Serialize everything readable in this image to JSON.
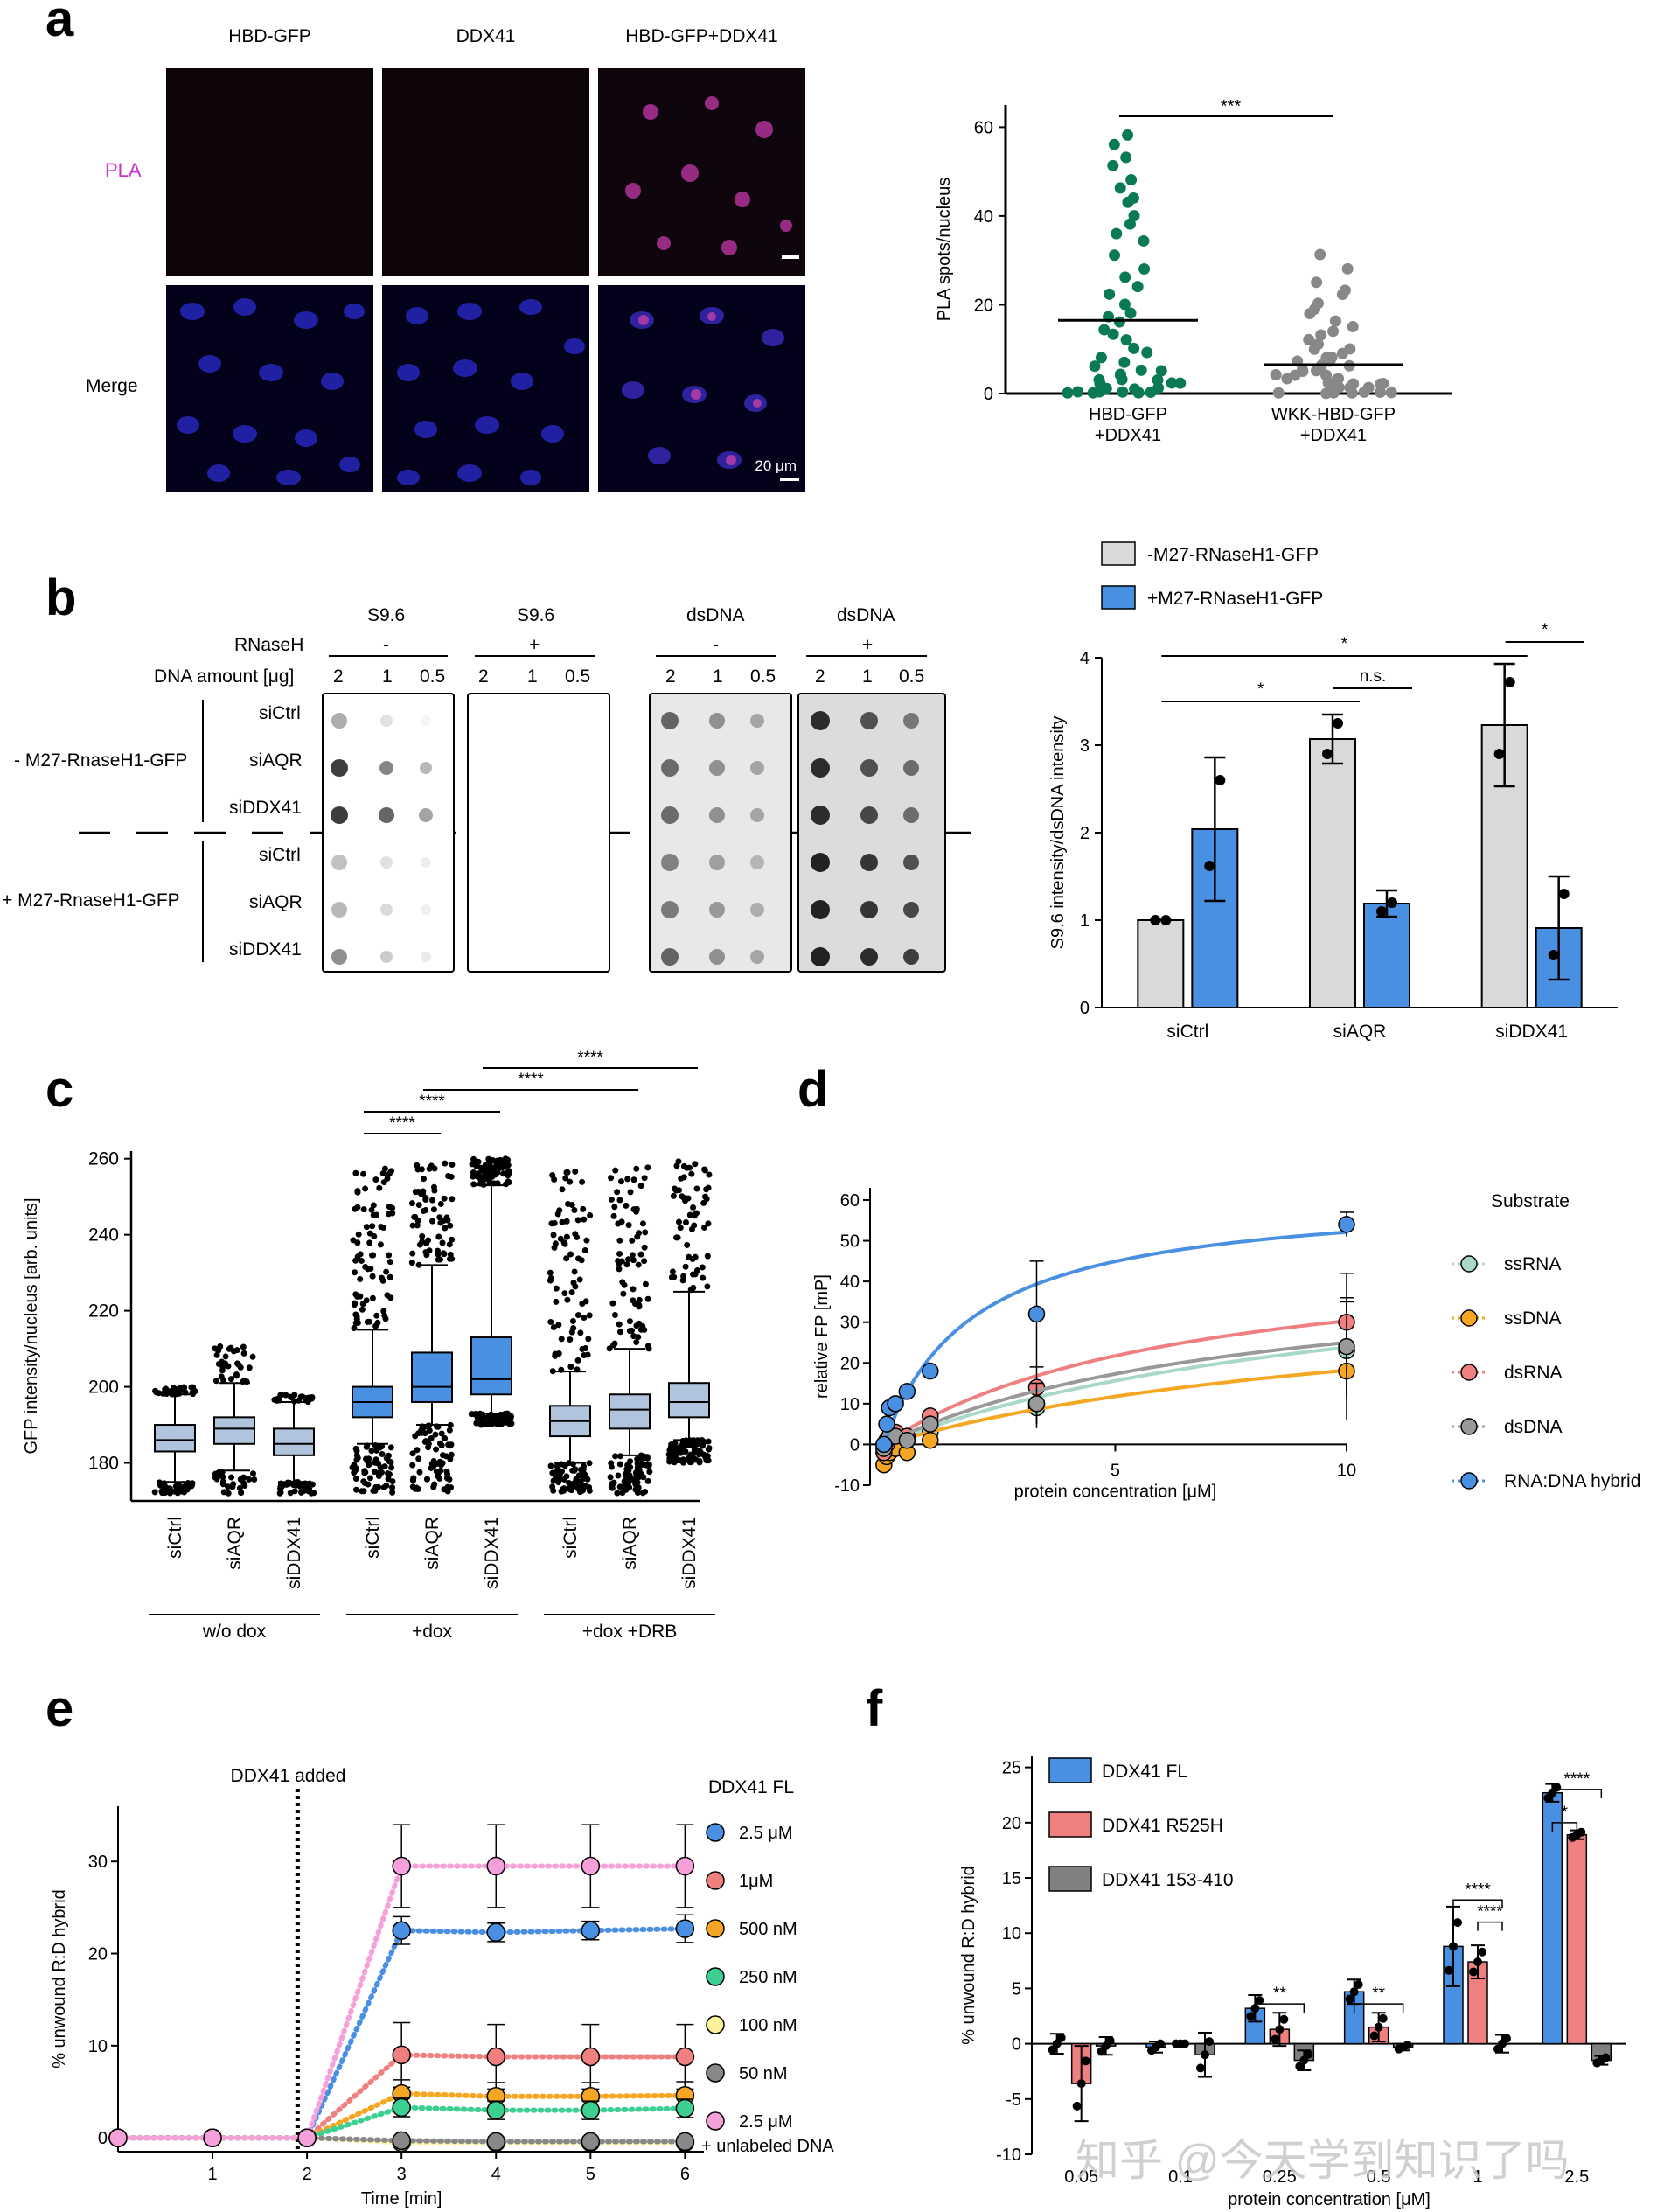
{
  "panels": {
    "a": "a",
    "b": "b",
    "c": "c",
    "d": "d",
    "e": "e",
    "f": "f"
  },
  "panel_a": {
    "columns": [
      "HBD-GFP",
      "DDX41",
      "HBD-GFP+DDX41"
    ],
    "rows": [
      "PLA",
      "Merge"
    ],
    "scale_bar": "20 μm",
    "chart_data": {
      "type": "scatter",
      "categories": [
        "HBD-GFP\n+DDX41",
        "WKK-HBD-GFP\n+DDX41"
      ],
      "category_lines": [
        [
          "HBD-GFP",
          "+DDX41"
        ],
        [
          "WKK-HBD-GFP",
          "+DDX41"
        ]
      ],
      "ylabel": "PLA spots/nucleus",
      "ylim": [
        0,
        65
      ],
      "yticks": [
        0,
        20,
        40,
        60
      ],
      "means": [
        16.5,
        6.5
      ],
      "significance": "***",
      "colors": [
        "#0a7a55",
        "#888888"
      ]
    }
  },
  "panel_b": {
    "blot_headers": [
      "S9.6",
      "S9.6",
      "dsDNA",
      "dsDNA"
    ],
    "rnaseh_label": "RNaseH",
    "rnaseh": [
      "-",
      "+",
      "-",
      "+"
    ],
    "dna_label": "DNA amount [μg]",
    "dna_amounts": [
      "2",
      "1",
      "0.5"
    ],
    "row_labels": [
      "siCtrl",
      "siAQR",
      "siDDX41",
      "siCtrl",
      "siAQR",
      "siDDX41"
    ],
    "group_labels": [
      "- M27-RnaseH1-GFP",
      "+ M27-RnaseH1-GFP"
    ],
    "chart_data": {
      "type": "bar",
      "categories": [
        "siCtrl",
        "siAQR",
        "siDDX41"
      ],
      "series": [
        {
          "name": "-M27-RNaseH1-GFP",
          "values": [
            1.0,
            3.07,
            3.23
          ],
          "err": [
            0.0,
            0.28,
            0.7
          ],
          "points": [
            [
              1.0,
              1.0
            ],
            [
              2.9,
              3.25
            ],
            [
              2.9,
              3.72
            ]
          ],
          "color": "#d9d9d9"
        },
        {
          "name": "+M27-RNaseH1-GFP",
          "values": [
            2.04,
            1.19,
            0.91
          ],
          "err": [
            0.82,
            0.15,
            0.59
          ],
          "points": [
            [
              1.62,
              2.6
            ],
            [
              1.1,
              1.2
            ],
            [
              0.6,
              1.3
            ]
          ],
          "color": "#4a90e2"
        }
      ],
      "ylabel": "S9.6 intensity/dsDNA intensity",
      "ylim": [
        0,
        4
      ],
      "yticks": [
        0,
        1,
        2,
        3,
        4
      ],
      "significance": [
        {
          "label": "*",
          "from": 0,
          "to": 1,
          "level": 2
        },
        {
          "label": "n.s.",
          "from": 1,
          "to": 1.5,
          "level": 1
        },
        {
          "label": "*",
          "from": 0,
          "to": 2,
          "level": 3
        },
        {
          "label": "*",
          "from": 2,
          "to": 2.5,
          "level": 4
        }
      ]
    }
  },
  "panel_c": {
    "chart_data": {
      "type": "box",
      "categories": [
        "siCtrl",
        "siAQR",
        "siDDX41",
        "siCtrl",
        "siAQR",
        "siDDX41",
        "siCtrl",
        "siAQR",
        "siDDX41"
      ],
      "groups": [
        "w/o dox",
        "+dox",
        "+dox +DRB"
      ],
      "ylabel": "GFP intensity/nucleus [arb. units]",
      "ylim": [
        170,
        262
      ],
      "yticks": [
        180,
        200,
        220,
        240,
        260
      ],
      "boxes": [
        {
          "min": 172,
          "q1": 183,
          "median": 186,
          "q3": 190,
          "max": 200,
          "wlo": 175,
          "whi": 198,
          "color": "#b0c4de"
        },
        {
          "min": 172,
          "q1": 185,
          "median": 189,
          "q3": 192,
          "max": 211,
          "wlo": 178,
          "whi": 201,
          "color": "#b0c4de"
        },
        {
          "min": 172,
          "q1": 182,
          "median": 185,
          "q3": 189,
          "max": 198,
          "wlo": 175,
          "whi": 196,
          "color": "#b0c4de"
        },
        {
          "min": 172,
          "q1": 192,
          "median": 196,
          "q3": 200,
          "max": 258,
          "wlo": 185,
          "whi": 215,
          "color": "#4a90e2"
        },
        {
          "min": 172,
          "q1": 196,
          "median": 200,
          "q3": 209,
          "max": 259,
          "wlo": 190,
          "whi": 232,
          "color": "#4a90e2"
        },
        {
          "min": 190,
          "q1": 198,
          "median": 202,
          "q3": 213,
          "max": 260,
          "wlo": 193,
          "whi": 253,
          "color": "#4a90e2"
        },
        {
          "min": 172,
          "q1": 187,
          "median": 191,
          "q3": 195,
          "max": 257,
          "wlo": 180,
          "whi": 204,
          "color": "#b0c4de"
        },
        {
          "min": 172,
          "q1": 189,
          "median": 194,
          "q3": 198,
          "max": 259,
          "wlo": 182,
          "whi": 210,
          "color": "#b0c4de"
        },
        {
          "min": 180,
          "q1": 192,
          "median": 196,
          "q3": 201,
          "max": 260,
          "wlo": 186,
          "whi": 225,
          "color": "#b0c4de"
        }
      ],
      "significance": [
        {
          "label": "****",
          "from": 3,
          "to": 4,
          "level": 1
        },
        {
          "label": "****",
          "from": 3,
          "to": 5,
          "level": 2
        },
        {
          "label": "****",
          "from": 4,
          "to": 7,
          "level": 3
        },
        {
          "label": "****",
          "from": 5,
          "to": 8,
          "level": 4
        }
      ]
    }
  },
  "panel_d": {
    "chart_data": {
      "type": "scatter",
      "xlabel": "protein concentration [μM]",
      "ylabel": "relative FP [mP]",
      "xlim": [
        -0.3,
        10
      ],
      "ylim": [
        -10,
        63
      ],
      "xticks": [
        5,
        10
      ],
      "yticks": [
        -10,
        0,
        10,
        20,
        30,
        40,
        50,
        60
      ],
      "legend_title": "Substrate",
      "series": [
        {
          "name": "ssRNA",
          "color": "#a8d8c8",
          "x": [
            0,
            0.06,
            0.12,
            0.25,
            0.5,
            1,
            3.3,
            10
          ],
          "y": [
            0,
            1,
            1,
            2,
            1,
            3,
            9,
            23
          ],
          "bmax": 50,
          "kd": 11
        },
        {
          "name": "ssDNA",
          "color": "#f5a623",
          "x": [
            0,
            0.06,
            0.12,
            0.25,
            0.5,
            1,
            3.3,
            10
          ],
          "y": [
            -5,
            -3,
            -2,
            -1,
            -2,
            1,
            10,
            18
          ],
          "bmax": 40,
          "kd": 12
        },
        {
          "name": "dsRNA",
          "color": "#f08080",
          "x": [
            0,
            0.06,
            0.12,
            0.25,
            0.5,
            1,
            3.3,
            10
          ],
          "y": [
            -2,
            0,
            2,
            3,
            2,
            7,
            14,
            30
          ],
          "bmax": 50,
          "kd": 6.5
        },
        {
          "name": "dsDNA",
          "color": "#999999",
          "x": [
            0,
            0.06,
            0.12,
            0.25,
            0.5,
            1,
            3.3,
            10
          ],
          "y": [
            -1,
            1,
            2,
            2,
            1,
            5,
            10,
            24
          ],
          "bmax": 45,
          "kd": 8
        },
        {
          "name": "RNA:DNA hybrid",
          "color": "#4a90e2",
          "x": [
            0,
            0.06,
            0.12,
            0.25,
            0.5,
            1,
            3.3,
            10
          ],
          "y": [
            0,
            5,
            9,
            10,
            13,
            18,
            32,
            54
          ],
          "bmax": 62,
          "kd": 1.9
        }
      ]
    }
  },
  "panel_e": {
    "annotation": "DDX41 added",
    "chart_data": {
      "type": "line",
      "xlabel": "Time [min]",
      "ylabel": "% unwound R:D hybrid",
      "xlim": [
        0,
        6.2
      ],
      "ylim": [
        -1.5,
        36
      ],
      "xticks": [
        1,
        2,
        3,
        4,
        5,
        6
      ],
      "yticks": [
        0,
        10,
        20,
        30
      ],
      "legend_title": "DDX41 FL",
      "x": [
        0,
        1,
        2,
        3,
        4,
        5,
        6
      ],
      "series": [
        {
          "name": "2.5 μM",
          "color": "#4a90e2",
          "y": [
            0,
            0,
            0,
            22.5,
            22.3,
            22.5,
            22.7
          ],
          "err": [
            0,
            0,
            0,
            1.5,
            1,
            1,
            1.5
          ]
        },
        {
          "name": "1μM",
          "color": "#f08080",
          "y": [
            0,
            0,
            0,
            9,
            8.8,
            8.8,
            8.8
          ],
          "err": [
            0,
            0,
            0,
            3.5,
            3.5,
            3.5,
            3.5
          ]
        },
        {
          "name": "500 nM",
          "color": "#f5a623",
          "y": [
            0,
            0,
            0,
            4.8,
            4.5,
            4.5,
            4.6
          ],
          "err": [
            0,
            0,
            0,
            1.5,
            1.5,
            1.5,
            1.5
          ]
        },
        {
          "name": "250 nM",
          "color": "#3ccf91",
          "y": [
            0,
            0,
            0,
            3.3,
            3,
            3,
            3.2
          ],
          "err": [
            0,
            0,
            0,
            1,
            1,
            1,
            1
          ]
        },
        {
          "name": "100 nM",
          "color": "#fbf29b",
          "y": [
            0,
            0,
            0,
            -0.5,
            -0.5,
            -0.5,
            -0.5
          ],
          "err": [
            0,
            0,
            0,
            0.3,
            0.3,
            0.3,
            0.3
          ]
        },
        {
          "name": "50 nM",
          "color": "#888888",
          "y": [
            0,
            0,
            0,
            -0.3,
            -0.4,
            -0.4,
            -0.4
          ],
          "err": [
            0,
            0,
            0,
            0.3,
            0.3,
            0.3,
            0.3
          ]
        },
        {
          "name": "2.5 μM\n+ unlabeled DNA",
          "color": "#f5a0d8",
          "y": [
            0,
            0,
            0,
            29.5,
            29.5,
            29.5,
            29.5
          ],
          "err": [
            0,
            0,
            0,
            4.5,
            4.5,
            4.5,
            4.5
          ]
        }
      ]
    }
  },
  "panel_f": {
    "watermark": "知乎 @今天学到知识了吗",
    "chart_data": {
      "type": "bar",
      "xlabel": "protein concentration [μM]",
      "ylabel": "% unwound R:D hybrid",
      "categories": [
        "0.05",
        "0.1",
        "0.25",
        "0.5",
        "1",
        "2.5"
      ],
      "ylim": [
        -10,
        26
      ],
      "yticks": [
        -10,
        -5,
        0,
        5,
        10,
        15,
        20,
        25
      ],
      "series": [
        {
          "name": "DDX41 FL",
          "color": "#4a90e2",
          "values": [
            0,
            -0.3,
            3.2,
            4.7,
            8.8,
            22.7
          ],
          "err": [
            0.9,
            0.5,
            1.2,
            1.1,
            3.6,
            0.8
          ]
        },
        {
          "name": "DDX41 R525H",
          "color": "#f08080",
          "values": [
            -3.6,
            0,
            1.3,
            1.5,
            7.4,
            18.9
          ],
          "err": [
            3.4,
            0,
            1.5,
            1.3,
            1.5,
            0.4
          ]
        },
        {
          "name": "DDX41 153-410",
          "color": "#808080",
          "values": [
            -0.2,
            -1,
            -1.5,
            -0.3,
            0,
            -1.5
          ],
          "err": [
            0.8,
            2,
            0.9,
            0.3,
            0.8,
            0.4
          ]
        }
      ],
      "significance": [
        {
          "label": "**",
          "cat": 2,
          "a": 0,
          "b": 2,
          "y": 3.6
        },
        {
          "label": "**",
          "cat": 3,
          "a": 0,
          "b": 2,
          "y": 3.6
        },
        {
          "label": "****",
          "cat": 4,
          "a": 0,
          "b": 2,
          "y": 13
        },
        {
          "label": "****",
          "cat": 4,
          "a": 1,
          "b": 2,
          "y": 11
        },
        {
          "label": "*",
          "cat": 5,
          "a": 0,
          "b": 1,
          "y": 20
        },
        {
          "label": "****",
          "cat": 5,
          "a": 0,
          "b": 2,
          "y": 23
        }
      ]
    }
  }
}
